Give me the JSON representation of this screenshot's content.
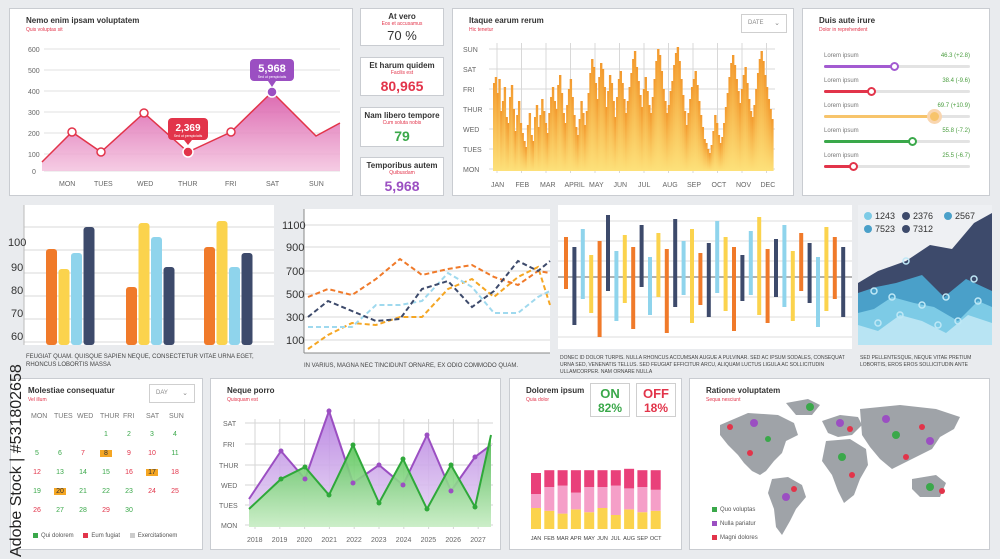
{
  "line_panel": {
    "title": "Nemo enim ipsam voluptatem",
    "subtitle": "Quis voluptas sit",
    "yticks": [
      "0",
      "100",
      "200",
      "300",
      "400",
      "500",
      "600"
    ],
    "days": [
      "MON",
      "TUES",
      "WED",
      "THUR",
      "FRI",
      "SAT",
      "SUN"
    ],
    "callout1": "5,968",
    "callout1_sub": "Sed ut perspiciatis",
    "callout2": "2,369",
    "callout2_sub": "Sed ut perspiciatis"
  },
  "stats": [
    {
      "title": "At vero",
      "sub": "Eos et accusamus",
      "value": "70 %",
      "color": "#333333"
    },
    {
      "title": "Et harum quidem",
      "sub": "Facilis est",
      "value": "80,965",
      "color": "#e2344a"
    },
    {
      "title": "Nam libero tempore",
      "sub": "Cum soluta nobis",
      "value": "79",
      "color": "#3aa84a"
    },
    {
      "title": "Temporibus autem",
      "sub": "Quibusdam",
      "value": "5,968",
      "color": "#9b4fc2"
    }
  ],
  "area_panel": {
    "title": "Itaque earum rerum",
    "subtitle": "Hic tenetur",
    "select": "DATE",
    "days": [
      "SUN",
      "SAT",
      "FRI",
      "THUR",
      "WED",
      "TUES",
      "MON"
    ],
    "months": [
      "JAN",
      "FEB",
      "MAR",
      "APRIL",
      "MAY",
      "JUN",
      "JUL",
      "AUG",
      "SEP",
      "OCT",
      "NOV",
      "DEC"
    ]
  },
  "sliders_panel": {
    "title": "Duis aute irure",
    "subtitle": "Dolor in reprehendent",
    "items": [
      {
        "label": "Lorem ipsum",
        "value": "46.3 (+2.8)",
        "pct": 0.48,
        "color": "#a35bd1"
      },
      {
        "label": "Lorem ipsum",
        "value": "38.4 (-9.6)",
        "pct": 0.32,
        "color": "#e2344a"
      },
      {
        "label": "Lorem ipsum",
        "value": "69.7 (+10.9)",
        "pct": 0.75,
        "color": "#f7c46b"
      },
      {
        "label": "Lorem ipsum",
        "value": "55.8 (-7.2)",
        "pct": 0.6,
        "color": "#3aa84a"
      },
      {
        "label": "Lorem ipsum",
        "value": "25.5 (-6.7)",
        "pct": 0.2,
        "color": "#e2344a"
      }
    ]
  },
  "bar_panel": {
    "yticks": [
      "60",
      "70",
      "80",
      "90",
      "100"
    ],
    "caption": "Feugiat quam. Quisque sapien neque, consectetur vitae urna eget, rhoncus lobortis massa"
  },
  "multiline_panel": {
    "yticks": [
      "100",
      "300",
      "500",
      "700",
      "900",
      "1100"
    ],
    "caption": "In varius, magna nec tincidunt ornare, ex odio commodo quam."
  },
  "diverging_panel": {
    "caption": "Donec id dolor turpis. Nulla rhoncus accumsan augue a pulvinar. Sed ac ipsum sodales, consequat urna sed, venenatis tellus. Sed feugiat efficitur arcu, aliquam luctus ligula ac sollicitudin ullamcorper. Nam ornare nulla"
  },
  "layer_panel": {
    "legend": [
      "1243",
      "2376",
      "2567",
      "7523",
      "7312"
    ],
    "caption": "Sed pellentesque, neque vitae pretium lobortis, eros eros sollicitudin ante"
  },
  "calendar": {
    "title": "Molestiae consequatur",
    "subtitle": "Vel illum",
    "select": "DAY",
    "weekdays": [
      "MON",
      "TUES",
      "WED",
      "THUR",
      "FRI",
      "SAT",
      "SUN"
    ],
    "legend": [
      "Qui dolorem",
      "Eum fugiat",
      "Exercitationem"
    ]
  },
  "neque_panel": {
    "title": "Neque porro",
    "subtitle": "Quisquam est",
    "days": [
      "SAT",
      "FRI",
      "THUR",
      "WED",
      "TUES",
      "MON"
    ],
    "years": [
      "2018",
      "2019",
      "2020",
      "2021",
      "2022",
      "2023",
      "2024",
      "2025",
      "2026",
      "2027"
    ]
  },
  "dolorem_panel": {
    "title": "Dolorem ipsum",
    "subtitle": "Quia dolor",
    "on_label": "ON",
    "on_value": "82%",
    "off_label": "OFF",
    "off_value": "18%",
    "months": [
      "JAN",
      "FEB",
      "MAR",
      "APR",
      "MAY",
      "JUN",
      "JUL",
      "AUG",
      "SEP",
      "OCT"
    ]
  },
  "map_panel": {
    "title": "Ratione voluptatem",
    "subtitle": "Sequa nesciunt",
    "legend": [
      "Quo voluptas",
      "Nulla pariatur",
      "Magni dolores"
    ]
  },
  "watermark": "Adobe Stock | #531802658",
  "colors": {
    "pink": "#e0559b",
    "purple": "#9b4fc2",
    "red": "#e2344a",
    "green": "#3aa84a",
    "orange": "#f5a623",
    "navy": "#3d4a6b"
  }
}
